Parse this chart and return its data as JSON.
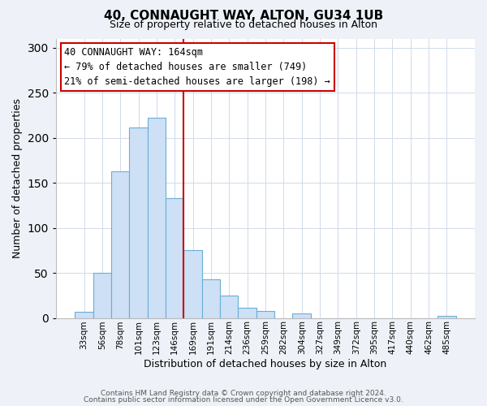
{
  "title": "40, CONNAUGHT WAY, ALTON, GU34 1UB",
  "subtitle": "Size of property relative to detached houses in Alton",
  "xlabel": "Distribution of detached houses by size in Alton",
  "ylabel": "Number of detached properties",
  "bar_labels": [
    "33sqm",
    "56sqm",
    "78sqm",
    "101sqm",
    "123sqm",
    "146sqm",
    "169sqm",
    "191sqm",
    "214sqm",
    "236sqm",
    "259sqm",
    "282sqm",
    "304sqm",
    "327sqm",
    "349sqm",
    "372sqm",
    "395sqm",
    "417sqm",
    "440sqm",
    "462sqm",
    "485sqm"
  ],
  "bar_values": [
    7,
    50,
    163,
    211,
    222,
    133,
    75,
    43,
    25,
    11,
    8,
    0,
    5,
    0,
    0,
    0,
    0,
    0,
    0,
    0,
    2
  ],
  "bar_color": "#cde0f5",
  "bar_edge_color": "#6aaed6",
  "vline_x": 6.0,
  "vline_color": "#cc0000",
  "annotation_title": "40 CONNAUGHT WAY: 164sqm",
  "annotation_line1": "← 79% of detached houses are smaller (749)",
  "annotation_line2": "21% of semi-detached houses are larger (198) →",
  "annotation_box_color": "#ffffff",
  "annotation_box_edge": "#cc0000",
  "ylim": [
    0,
    310
  ],
  "yticks": [
    0,
    50,
    100,
    150,
    200,
    250,
    300
  ],
  "footer1": "Contains HM Land Registry data © Crown copyright and database right 2024.",
  "footer2": "Contains public sector information licensed under the Open Government Licence v3.0.",
  "bg_color": "#eef2f8",
  "plot_bg_color": "#ffffff",
  "grid_color": "#d0daea"
}
